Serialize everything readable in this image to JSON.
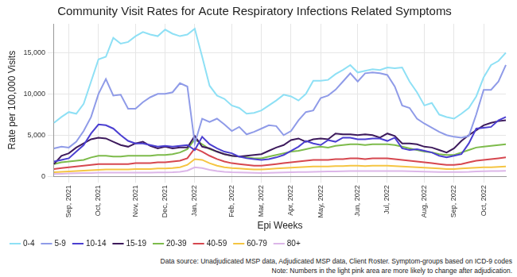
{
  "chart_data": {
    "type": "line",
    "title": "Community Visit Rates for Acute Respiratory Infections Related Symptoms",
    "x_label": "Epi Weeks",
    "y_label": "Rate per 100,000 Visits",
    "annotations": [
      "Data source: Unadjudicated MSP data, Adjudicated MSP data, Client Roster. Symptom-groups based on ICD-9 codes",
      "Note: Numbers in the light pink area are more likely to change after adjudication."
    ],
    "categories": [
      null,
      null,
      "Sep, 2021",
      null,
      null,
      null,
      "Oct, 2021",
      null,
      null,
      null,
      null,
      "Nov, 2021",
      null,
      null,
      null,
      "Dec, 2021",
      null,
      null,
      null,
      "Jan, 2022",
      null,
      null,
      null,
      null,
      "Feb, 2022",
      null,
      null,
      null,
      "Mar, 2022",
      null,
      null,
      null,
      "Apr, 2022",
      null,
      null,
      null,
      "May, 2022",
      null,
      null,
      null,
      null,
      "Jun, 2022",
      null,
      null,
      null,
      "Jul, 2022",
      null,
      null,
      null,
      null,
      "Aug, 2022",
      null,
      null,
      null,
      "Sep, 2022",
      null,
      null,
      null,
      "Oct, 2022",
      null,
      null,
      null
    ],
    "series": [
      {
        "name": "0-4",
        "color": "#8ee0f5",
        "values": [
          6500,
          7200,
          7800,
          7600,
          8800,
          11500,
          14200,
          14500,
          16800,
          16100,
          16300,
          17000,
          17500,
          17200,
          17000,
          17800,
          17300,
          17000,
          17200,
          17900,
          14500,
          11000,
          9800,
          9400,
          8600,
          8300,
          7600,
          7700,
          8000,
          8600,
          9200,
          9900,
          9700,
          9200,
          10000,
          11600,
          11600,
          11700,
          12400,
          12900,
          13500,
          12600,
          12800,
          13000,
          12900,
          13200,
          13100,
          13200,
          11500,
          10200,
          8600,
          8900,
          7500,
          7200,
          7000,
          7600,
          8300,
          9700,
          12000,
          13500,
          14000,
          15000
        ]
      },
      {
        "name": "5-9",
        "color": "#8f9be8",
        "values": [
          3400,
          3600,
          3500,
          4200,
          5500,
          7200,
          10000,
          11800,
          9800,
          9900,
          8200,
          8200,
          9000,
          9600,
          10000,
          10000,
          10200,
          11300,
          10900,
          4000,
          7000,
          6600,
          7000,
          6300,
          5500,
          6000,
          5100,
          5400,
          5800,
          6200,
          6100,
          5000,
          5500,
          6800,
          7800,
          8000,
          9500,
          9800,
          10500,
          11500,
          12500,
          11500,
          12500,
          12600,
          12500,
          12300,
          10900,
          8600,
          8300,
          7000,
          6400,
          5900,
          5400,
          5000,
          4800,
          4700,
          4900,
          7500,
          10500,
          10500,
          11500,
          13500
        ]
      },
      {
        "name": "10-14",
        "color": "#4b3fd1",
        "values": [
          1800,
          2000,
          2200,
          3000,
          3800,
          5200,
          6300,
          6200,
          5800,
          5000,
          4300,
          4000,
          4000,
          3800,
          3600,
          3700,
          3600,
          3700,
          3800,
          3200,
          4800,
          3900,
          3400,
          3000,
          2800,
          2400,
          2200,
          2100,
          2000,
          2100,
          2300,
          2600,
          3100,
          3600,
          4300,
          4000,
          3800,
          4400,
          4200,
          4700,
          4700,
          4500,
          4500,
          4600,
          4600,
          4300,
          4700,
          3400,
          3200,
          3300,
          3100,
          2900,
          2500,
          2300,
          2500,
          2700,
          4000,
          5800,
          5900,
          6000,
          6800,
          7200
        ]
      },
      {
        "name": "15-19",
        "color": "#3d1a5c",
        "values": [
          1500,
          2500,
          2800,
          3500,
          4000,
          4500,
          4700,
          4600,
          4200,
          3800,
          3600,
          4000,
          4200,
          3700,
          3400,
          3600,
          3400,
          3500,
          3500,
          4900,
          3600,
          3400,
          3000,
          2700,
          2500,
          2400,
          2500,
          2600,
          2700,
          3100,
          3500,
          3800,
          4400,
          4600,
          4200,
          4500,
          4600,
          4500,
          5200,
          5100,
          5100,
          5000,
          5100,
          5000,
          4700,
          5200,
          4900,
          4000,
          4000,
          3900,
          3600,
          3500,
          3200,
          2900,
          3400,
          4300,
          5000,
          5600,
          6200,
          6500,
          6700,
          6800
        ]
      },
      {
        "name": "20-39",
        "color": "#7dbb4b",
        "values": [
          1500,
          1700,
          1800,
          1900,
          2000,
          2300,
          2500,
          2500,
          2400,
          2400,
          2500,
          2500,
          2500,
          2500,
          2600,
          2600,
          2700,
          2900,
          3300,
          4500,
          3900,
          3300,
          3000,
          2700,
          2500,
          2400,
          2300,
          2200,
          2200,
          2400,
          2600,
          2800,
          3000,
          3100,
          3300,
          3500,
          3600,
          3500,
          3700,
          3800,
          3900,
          3900,
          3800,
          3900,
          3900,
          3900,
          3800,
          3600,
          3400,
          3200,
          3000,
          2900,
          2700,
          2600,
          2600,
          2900,
          3200,
          3500,
          3600,
          3700,
          3800,
          3900
        ]
      },
      {
        "name": "40-59",
        "color": "#d6474f",
        "values": [
          900,
          1000,
          1100,
          1200,
          1300,
          1400,
          1500,
          1500,
          1500,
          1500,
          1500,
          1600,
          1600,
          1600,
          1700,
          1700,
          1800,
          1900,
          2200,
          3400,
          3000,
          2500,
          2100,
          1800,
          1600,
          1500,
          1400,
          1300,
          1300,
          1400,
          1500,
          1600,
          1700,
          1800,
          1900,
          2000,
          2000,
          2000,
          2100,
          2100,
          2200,
          2200,
          2100,
          2200,
          2200,
          2200,
          2100,
          2000,
          1900,
          1800,
          1700,
          1600,
          1500,
          1400,
          1400,
          1500,
          1700,
          1900,
          2000,
          2100,
          2200,
          2300
        ]
      },
      {
        "name": "60-79",
        "color": "#f5c542",
        "values": [
          500,
          550,
          600,
          650,
          700,
          750,
          800,
          850,
          850,
          850,
          850,
          900,
          900,
          900,
          950,
          950,
          1000,
          1100,
          1400,
          2100,
          2000,
          1600,
          1300,
          1100,
          1000,
          950,
          900,
          850,
          850,
          900,
          950,
          1000,
          1050,
          1100,
          1150,
          1200,
          1200,
          1200,
          1250,
          1250,
          1300,
          1300,
          1250,
          1300,
          1300,
          1300,
          1250,
          1200,
          1150,
          1100,
          1050,
          1000,
          950,
          900,
          900,
          950,
          1000,
          1050,
          1100,
          1100,
          1150,
          1200
        ]
      },
      {
        "name": "80+",
        "color": "#dcb6e8",
        "values": [
          300,
          320,
          350,
          380,
          400,
          420,
          450,
          450,
          450,
          450,
          450,
          450,
          450,
          460,
          470,
          480,
          500,
          550,
          700,
          1100,
          1000,
          800,
          650,
          550,
          500,
          480,
          450,
          430,
          420,
          430,
          450,
          480,
          500,
          520,
          540,
          560,
          580,
          600,
          600,
          620,
          640,
          650,
          640,
          650,
          660,
          660,
          650,
          640,
          620,
          600,
          580,
          560,
          540,
          520,
          520,
          540,
          560,
          600,
          620,
          640,
          660,
          680
        ]
      }
    ],
    "ylim": [
      0,
      18500
    ],
    "yticks": [
      0,
      {
        "value": 5000,
        "label": "5,000"
      },
      {
        "value": 10000,
        "label": "10,000"
      },
      {
        "value": 15000,
        "label": "15,000"
      }
    ],
    "grid": true,
    "legend": "bottom"
  }
}
